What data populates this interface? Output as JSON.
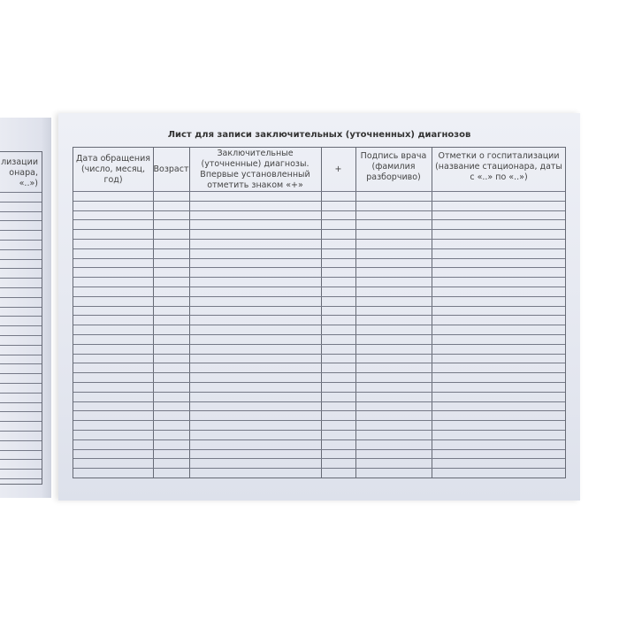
{
  "left_page": {
    "header_fragment": [
      "лизации",
      "онара,",
      "«..»)"
    ]
  },
  "right_page": {
    "title": "Лист для записи заключительных (уточненных) диагнозов",
    "columns": [
      "Дата обращения (число, месяц, год)",
      "Возраст",
      "Заключительные (уточненные) диагнозы. Впервые установленный отметить знаком «+»",
      "+",
      "Подпись врача (фамилия разборчиво)",
      "Отметки о госпитализации (название стационара, даты с «..» по «..»)"
    ]
  }
}
